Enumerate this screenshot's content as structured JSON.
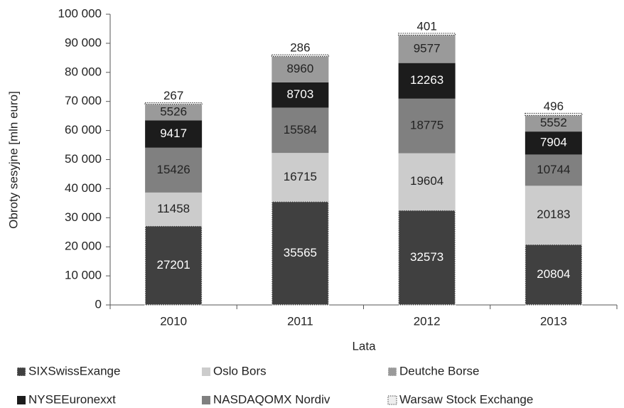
{
  "chart_data": {
    "type": "stacked_bar",
    "x_label": "Lata",
    "y_label": "Obroty sesyjne [mln euro]",
    "categories": [
      "2010",
      "2011",
      "2012",
      "2013"
    ],
    "series": [
      {
        "name": "SIXSwissExange",
        "color": "#404040",
        "values": [
          27201,
          35565,
          32573,
          20804
        ]
      },
      {
        "name": "Oslo Bors",
        "color": "#cccccc",
        "values": [
          11458,
          16715,
          19604,
          20183
        ]
      },
      {
        "name": "NASDAQOMX Nordiv",
        "color": "#808080",
        "values": [
          15426,
          15584,
          18775,
          10744
        ]
      },
      {
        "name": "NYSEEuronexxt",
        "color": "#1c1c1c",
        "values": [
          9417,
          8703,
          12263,
          7904
        ]
      },
      {
        "name": "Deutche  Borse",
        "color": "#9a9a9a",
        "values": [
          5526,
          8960,
          9577,
          5552
        ]
      },
      {
        "name": "Warsaw  Stock Exchange",
        "color": "#eeeeee",
        "values": [
          267,
          286,
          401,
          496
        ]
      }
    ],
    "ylim": [
      0,
      100000
    ],
    "yticks": [
      {
        "value": 0,
        "label": "0"
      },
      {
        "value": 10000,
        "label": "10 000"
      },
      {
        "value": 20000,
        "label": "20 000"
      },
      {
        "value": 30000,
        "label": "30 000"
      },
      {
        "value": 40000,
        "label": "40 000"
      },
      {
        "value": 50000,
        "label": "50 000"
      },
      {
        "value": 60000,
        "label": "60 000"
      },
      {
        "value": 70000,
        "label": "70 000"
      },
      {
        "value": 80000,
        "label": "80 000"
      },
      {
        "value": 90000,
        "label": "90 000"
      },
      {
        "value": 100000,
        "label": "100 000"
      }
    ],
    "legend": "bottom"
  }
}
